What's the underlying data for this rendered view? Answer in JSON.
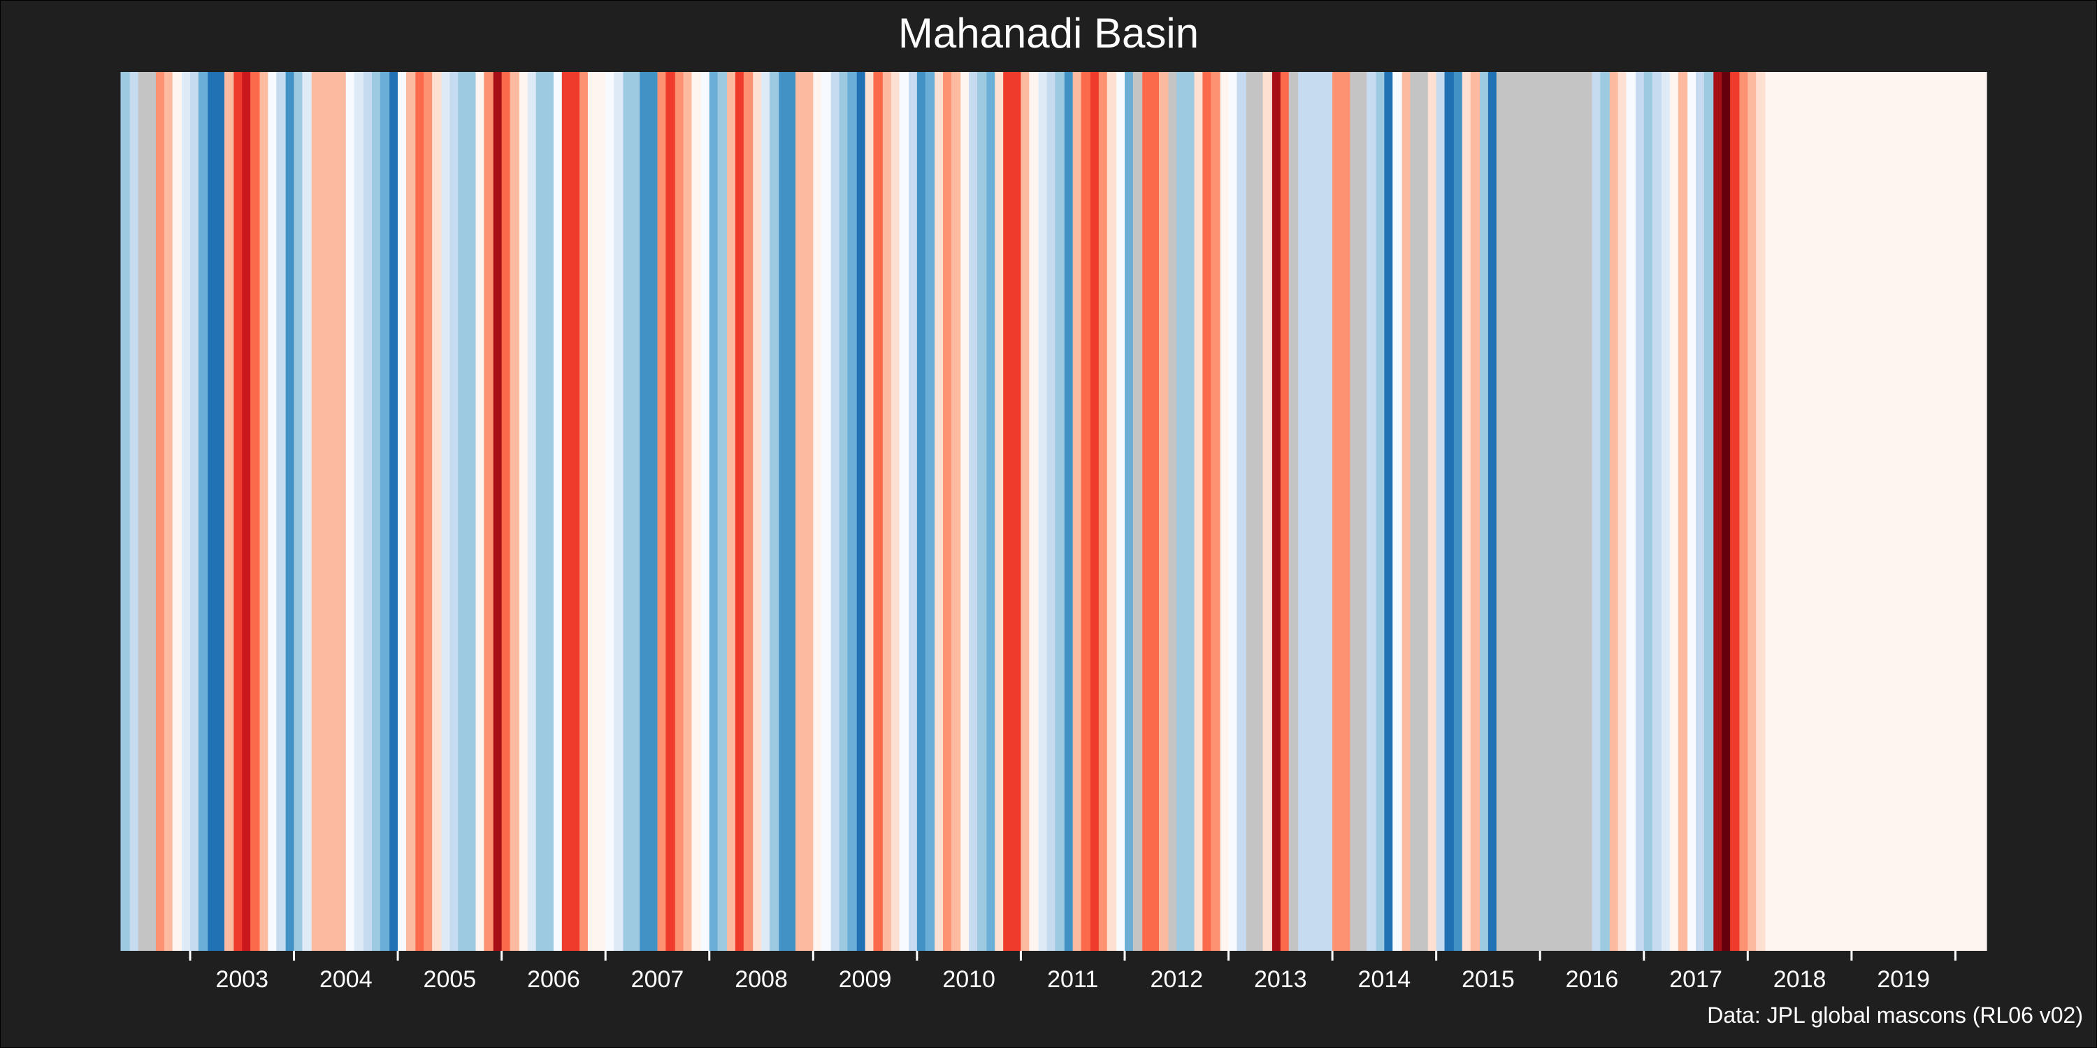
{
  "chart_data": {
    "type": "heatmap",
    "title": "Mahanadi Basin",
    "caption": "Data: JPL global mascons (RL06 v02)",
    "xlabel": "",
    "ylabel": "",
    "x_tick_labels": [
      "2003",
      "2004",
      "2005",
      "2006",
      "2007",
      "2008",
      "2009",
      "2010",
      "2011",
      "2012",
      "2013",
      "2014",
      "2015",
      "2016",
      "2017",
      "2018",
      "2019"
    ],
    "x_range": [
      2002.3,
      2020.3
    ],
    "y_axis": "none",
    "grid": false,
    "legend": "none",
    "missing_color": "#c4c4c4",
    "colormap": [
      "#08306b",
      "#08519c",
      "#2171b5",
      "#4292c6",
      "#6baed6",
      "#9ecae1",
      "#c6dbef",
      "#deebf7",
      "#f7fbff",
      "#fff5f0",
      "#fee0d2",
      "#fcbba1",
      "#fc9272",
      "#fb6a4a",
      "#ef3b2c",
      "#cb181d",
      "#a50f15",
      "#67000d"
    ],
    "stripes": [
      {
        "t": 2002.33,
        "v": 0.45
      },
      {
        "t": 2002.42,
        "v": 0.25
      },
      {
        "t": 2002.5,
        "v": null
      },
      {
        "t": 2002.58,
        "v": null
      },
      {
        "t": 2002.67,
        "v": -0.45
      },
      {
        "t": 2002.75,
        "v": -0.35
      },
      {
        "t": 2002.83,
        "v": -0.1
      },
      {
        "t": 2002.92,
        "v": 0.2
      },
      {
        "t": 2003.0,
        "v": 0.3
      },
      {
        "t": 2003.08,
        "v": 0.55
      },
      {
        "t": 2003.17,
        "v": 0.75
      },
      {
        "t": 2003.25,
        "v": 0.75
      },
      {
        "t": 2003.33,
        "v": -0.3
      },
      {
        "t": 2003.42,
        "v": -0.7
      },
      {
        "t": 2003.5,
        "v": -0.75
      },
      {
        "t": 2003.58,
        "v": -0.55
      },
      {
        "t": 2003.67,
        "v": -0.25
      },
      {
        "t": 2003.75,
        "v": 0.1
      },
      {
        "t": 2003.83,
        "v": 0.35
      },
      {
        "t": 2003.92,
        "v": 0.65
      },
      {
        "t": 2004.0,
        "v": 0.45
      },
      {
        "t": 2004.08,
        "v": 0.2
      },
      {
        "t": 2004.17,
        "v": -0.35
      },
      {
        "t": 2004.25,
        "v": -0.35
      },
      {
        "t": 2004.33,
        "v": -0.35
      },
      {
        "t": 2004.42,
        "v": -0.35
      },
      {
        "t": 2004.5,
        "v": 0.1
      },
      {
        "t": 2004.58,
        "v": 0.15
      },
      {
        "t": 2004.67,
        "v": 0.3
      },
      {
        "t": 2004.75,
        "v": 0.45
      },
      {
        "t": 2004.83,
        "v": 0.55
      },
      {
        "t": 2004.92,
        "v": 0.75
      },
      {
        "t": 2005.0,
        "v": 0.05
      },
      {
        "t": 2005.08,
        "v": -0.35
      },
      {
        "t": 2005.17,
        "v": -0.5
      },
      {
        "t": 2005.25,
        "v": -0.4
      },
      {
        "t": 2005.33,
        "v": -0.15
      },
      {
        "t": 2005.42,
        "v": 0.15
      },
      {
        "t": 2005.5,
        "v": 0.3
      },
      {
        "t": 2005.58,
        "v": 0.45
      },
      {
        "t": 2005.67,
        "v": 0.45
      },
      {
        "t": 2005.75,
        "v": 0.0
      },
      {
        "t": 2005.83,
        "v": -0.45
      },
      {
        "t": 2005.92,
        "v": -0.85
      },
      {
        "t": 2006.0,
        "v": -0.55
      },
      {
        "t": 2006.08,
        "v": -0.25
      },
      {
        "t": 2006.17,
        "v": 0.0
      },
      {
        "t": 2006.25,
        "v": 0.15
      },
      {
        "t": 2006.33,
        "v": 0.4
      },
      {
        "t": 2006.42,
        "v": 0.4
      },
      {
        "t": 2006.5,
        "v": 0.05
      },
      {
        "t": 2006.58,
        "v": -0.65
      },
      {
        "t": 2006.67,
        "v": -0.65
      },
      {
        "t": 2006.75,
        "v": -0.4
      },
      {
        "t": 2006.83,
        "v": -0.1
      },
      {
        "t": 2006.92,
        "v": 0.0
      },
      {
        "t": 2007.0,
        "v": 0.05
      },
      {
        "t": 2007.08,
        "v": 0.2
      },
      {
        "t": 2007.17,
        "v": 0.4
      },
      {
        "t": 2007.25,
        "v": 0.45
      },
      {
        "t": 2007.33,
        "v": 0.6
      },
      {
        "t": 2007.42,
        "v": 0.65
      },
      {
        "t": 2007.5,
        "v": -0.45
      },
      {
        "t": 2007.58,
        "v": -0.65
      },
      {
        "t": 2007.67,
        "v": -0.4
      },
      {
        "t": 2007.75,
        "v": -0.3
      },
      {
        "t": 2007.83,
        "v": 0.0
      },
      {
        "t": 2007.92,
        "v": 0.05
      },
      {
        "t": 2008.0,
        "v": 0.5
      },
      {
        "t": 2008.08,
        "v": 0.4
      },
      {
        "t": 2008.17,
        "v": -0.3
      },
      {
        "t": 2008.25,
        "v": -0.65
      },
      {
        "t": 2008.33,
        "v": -0.45
      },
      {
        "t": 2008.42,
        "v": -0.2
      },
      {
        "t": 2008.5,
        "v": 0.15
      },
      {
        "t": 2008.58,
        "v": 0.4
      },
      {
        "t": 2008.67,
        "v": 0.7
      },
      {
        "t": 2008.75,
        "v": 0.65
      },
      {
        "t": 2008.83,
        "v": -0.35
      },
      {
        "t": 2008.92,
        "v": -0.35
      },
      {
        "t": 2009.0,
        "v": -0.1
      },
      {
        "t": 2009.08,
        "v": 0.1
      },
      {
        "t": 2009.17,
        "v": 0.35
      },
      {
        "t": 2009.25,
        "v": 0.45
      },
      {
        "t": 2009.33,
        "v": 0.55
      },
      {
        "t": 2009.42,
        "v": 0.8
      },
      {
        "t": 2009.5,
        "v": -0.2
      },
      {
        "t": 2009.58,
        "v": -0.55
      },
      {
        "t": 2009.67,
        "v": -0.35
      },
      {
        "t": 2009.75,
        "v": -0.15
      },
      {
        "t": 2009.83,
        "v": 0.05
      },
      {
        "t": 2009.92,
        "v": 0.3
      },
      {
        "t": 2010.0,
        "v": 0.6
      },
      {
        "t": 2010.08,
        "v": 0.5
      },
      {
        "t": 2010.17,
        "v": -0.2
      },
      {
        "t": 2010.25,
        "v": -0.45
      },
      {
        "t": 2010.33,
        "v": -0.3
      },
      {
        "t": 2010.42,
        "v": 0.0
      },
      {
        "t": 2010.5,
        "v": 0.25
      },
      {
        "t": 2010.58,
        "v": 0.45
      },
      {
        "t": 2010.67,
        "v": 0.55
      },
      {
        "t": 2010.75,
        "v": -0.2
      },
      {
        "t": 2010.83,
        "v": -0.6
      },
      {
        "t": 2010.92,
        "v": -0.6
      },
      {
        "t": 2011.0,
        "v": -0.3
      },
      {
        "t": 2011.08,
        "v": 0.0
      },
      {
        "t": 2011.17,
        "v": 0.2
      },
      {
        "t": 2011.25,
        "v": 0.35
      },
      {
        "t": 2011.33,
        "v": 0.45
      },
      {
        "t": 2011.42,
        "v": 0.6
      },
      {
        "t": 2011.5,
        "v": -0.35
      },
      {
        "t": 2011.58,
        "v": -0.55
      },
      {
        "t": 2011.67,
        "v": -0.65
      },
      {
        "t": 2011.75,
        "v": -0.45
      },
      {
        "t": 2011.83,
        "v": -0.15
      },
      {
        "t": 2011.92,
        "v": 0.1
      },
      {
        "t": 2012.0,
        "v": 0.5
      },
      {
        "t": 2012.08,
        "v": null
      },
      {
        "t": 2012.17,
        "v": -0.5
      },
      {
        "t": 2012.25,
        "v": -0.5
      },
      {
        "t": 2012.33,
        "v": -0.3
      },
      {
        "t": 2012.42,
        "v": null
      },
      {
        "t": 2012.5,
        "v": 0.45
      },
      {
        "t": 2012.58,
        "v": 0.45
      },
      {
        "t": 2012.67,
        "v": -0.2
      },
      {
        "t": 2012.75,
        "v": -0.5
      },
      {
        "t": 2012.83,
        "v": -0.4
      },
      {
        "t": 2012.92,
        "v": -0.1
      },
      {
        "t": 2013.0,
        "v": 0.1
      },
      {
        "t": 2013.08,
        "v": 0.25
      },
      {
        "t": 2013.17,
        "v": null
      },
      {
        "t": 2013.25,
        "v": null
      },
      {
        "t": 2013.33,
        "v": -0.15
      },
      {
        "t": 2013.42,
        "v": -0.85
      },
      {
        "t": 2013.5,
        "v": -0.5
      },
      {
        "t": 2013.58,
        "v": null
      },
      {
        "t": 2013.67,
        "v": 0.3
      },
      {
        "t": 2013.75,
        "v": 0.3
      },
      {
        "t": 2013.83,
        "v": 0.3
      },
      {
        "t": 2013.92,
        "v": 0.3
      },
      {
        "t": 2014.0,
        "v": -0.45
      },
      {
        "t": 2014.08,
        "v": -0.45
      },
      {
        "t": 2014.17,
        "v": null
      },
      {
        "t": 2014.25,
        "v": null
      },
      {
        "t": 2014.33,
        "v": 0.25
      },
      {
        "t": 2014.42,
        "v": 0.45
      },
      {
        "t": 2014.5,
        "v": 0.75
      },
      {
        "t": 2014.58,
        "v": 0.05
      },
      {
        "t": 2014.67,
        "v": -0.3
      },
      {
        "t": 2014.75,
        "v": null
      },
      {
        "t": 2014.83,
        "v": null
      },
      {
        "t": 2014.92,
        "v": -0.15
      },
      {
        "t": 2015.0,
        "v": 0.35
      },
      {
        "t": 2015.08,
        "v": 0.75
      },
      {
        "t": 2015.17,
        "v": 0.65
      },
      {
        "t": 2015.25,
        "v": -0.15
      },
      {
        "t": 2015.33,
        "v": -0.35
      },
      {
        "t": 2015.42,
        "v": 0.45
      },
      {
        "t": 2015.5,
        "v": 0.8
      },
      {
        "t": 2015.58,
        "v": null
      },
      {
        "t": 2015.67,
        "v": null
      },
      {
        "t": 2015.75,
        "v": null
      },
      {
        "t": 2015.83,
        "v": null
      },
      {
        "t": 2015.92,
        "v": null
      },
      {
        "t": 2016.0,
        "v": null
      },
      {
        "t": 2016.08,
        "v": null
      },
      {
        "t": 2016.17,
        "v": null
      },
      {
        "t": 2016.25,
        "v": null
      },
      {
        "t": 2016.33,
        "v": null
      },
      {
        "t": 2016.42,
        "v": null
      },
      {
        "t": 2016.5,
        "v": 0.35
      },
      {
        "t": 2016.58,
        "v": 0.4
      },
      {
        "t": 2016.67,
        "v": -0.3
      },
      {
        "t": 2016.75,
        "v": -0.15
      },
      {
        "t": 2016.83,
        "v": 0.1
      },
      {
        "t": 2016.92,
        "v": 0.3
      },
      {
        "t": 2017.0,
        "v": 0.45
      },
      {
        "t": 2017.08,
        "v": 0.35
      },
      {
        "t": 2017.17,
        "v": 0.15
      },
      {
        "t": 2017.25,
        "v": -0.1
      },
      {
        "t": 2017.33,
        "v": -0.3
      },
      {
        "t": 2017.42,
        "v": 0.1
      },
      {
        "t": 2017.5,
        "v": 0.3
      },
      {
        "t": 2017.58,
        "v": 0.45
      },
      {
        "t": 2017.67,
        "v": -0.85
      },
      {
        "t": 2017.75,
        "v": -0.95
      },
      {
        "t": 2017.83,
        "v": -0.65
      },
      {
        "t": 2017.92,
        "v": -0.4
      },
      {
        "t": 2018.0,
        "v": -0.3
      },
      {
        "t": 2018.08,
        "v": -0.2
      },
      {
        "t": 2018.17,
        "v": -0.1
      }
    ]
  }
}
